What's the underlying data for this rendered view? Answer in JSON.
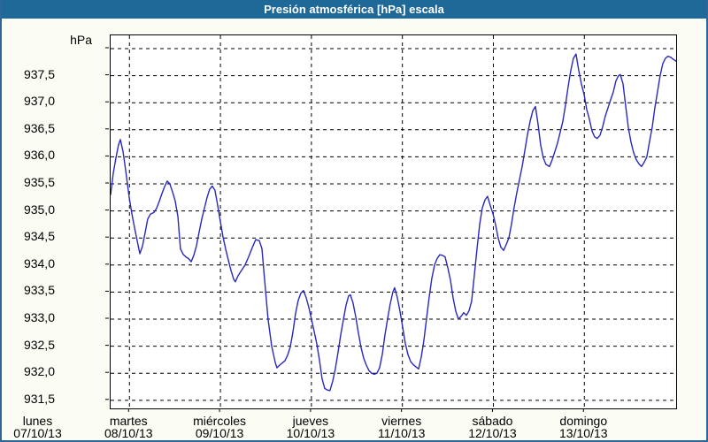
{
  "window": {
    "title": "Presión atmosférica [hPa] escala"
  },
  "colors": {
    "title_bar": "#1e6998",
    "frame": "#2d6797",
    "background": "#fbfdf5",
    "plot_background": "#ffffff",
    "line": "#2828be",
    "grid": "#000000",
    "text": "#000000"
  },
  "chart_data": {
    "type": "line",
    "title": "Presión atmosférica [hPa] escala",
    "ylabel": "hPa",
    "xlabel": "",
    "legend": "none",
    "grid": "dashed",
    "y_axis": {
      "min": 931.35,
      "max": 938.245,
      "gridline_step": 0.5,
      "decimal_separator": ",",
      "ticks": [
        {
          "value": 938.0,
          "label": ""
        },
        {
          "value": 937.5,
          "label": "937,5"
        },
        {
          "value": 937.0,
          "label": "937,0"
        },
        {
          "value": 936.5,
          "label": "936,5"
        },
        {
          "value": 936.0,
          "label": "936,0"
        },
        {
          "value": 935.5,
          "label": "935,5"
        },
        {
          "value": 935.0,
          "label": "935,0"
        },
        {
          "value": 934.5,
          "label": "934,5"
        },
        {
          "value": 934.0,
          "label": "934,0"
        },
        {
          "value": 933.5,
          "label": "933,5"
        },
        {
          "value": 933.0,
          "label": "933,0"
        },
        {
          "value": 932.5,
          "label": "932,5"
        },
        {
          "value": 932.0,
          "label": "932,0"
        },
        {
          "value": 931.5,
          "label": "931,5"
        }
      ]
    },
    "x_axis": {
      "unit": "days since Monday 07/10/13 00:00",
      "visible_min": 0.793,
      "visible_max": 7.009,
      "gridline_days": [
        1,
        2,
        3,
        4,
        5,
        6
      ],
      "ticks": [
        {
          "day": 0,
          "name": "lunes",
          "date": "07/10/13"
        },
        {
          "day": 1,
          "name": "martes",
          "date": "08/10/13"
        },
        {
          "day": 2,
          "name": "miércoles",
          "date": "09/10/13"
        },
        {
          "day": 3,
          "name": "jueves",
          "date": "10/10/13"
        },
        {
          "day": 4,
          "name": "viernes",
          "date": "11/10/13"
        },
        {
          "day": 5,
          "name": "sábado",
          "date": "12/10/13"
        },
        {
          "day": 6,
          "name": "domingo",
          "date": "13/10/13"
        }
      ]
    },
    "series": [
      {
        "name": "Presión atmosférica",
        "unit": "hPa",
        "points": [
          [
            0.793,
            935.3
          ],
          [
            0.822,
            935.7
          ],
          [
            0.851,
            935.98
          ],
          [
            0.88,
            936.22
          ],
          [
            0.9,
            936.32
          ],
          [
            0.929,
            936.1
          ],
          [
            0.958,
            935.75
          ],
          [
            0.997,
            935.25
          ],
          [
            1.026,
            934.95
          ],
          [
            1.055,
            934.7
          ],
          [
            1.085,
            934.45
          ],
          [
            1.114,
            934.21
          ],
          [
            1.143,
            934.35
          ],
          [
            1.172,
            934.6
          ],
          [
            1.201,
            934.85
          ],
          [
            1.23,
            934.94
          ],
          [
            1.269,
            934.97
          ],
          [
            1.299,
            935.05
          ],
          [
            1.328,
            935.18
          ],
          [
            1.357,
            935.32
          ],
          [
            1.386,
            935.45
          ],
          [
            1.415,
            935.55
          ],
          [
            1.444,
            935.5
          ],
          [
            1.474,
            935.35
          ],
          [
            1.503,
            935.18
          ],
          [
            1.532,
            934.9
          ],
          [
            1.561,
            934.3
          ],
          [
            1.59,
            934.2
          ],
          [
            1.62,
            934.15
          ],
          [
            1.649,
            934.12
          ],
          [
            1.678,
            934.06
          ],
          [
            1.707,
            934.18
          ],
          [
            1.736,
            934.35
          ],
          [
            1.765,
            934.6
          ],
          [
            1.795,
            934.85
          ],
          [
            1.824,
            935.05
          ],
          [
            1.853,
            935.25
          ],
          [
            1.882,
            935.4
          ],
          [
            1.911,
            935.46
          ],
          [
            1.94,
            935.38
          ],
          [
            1.97,
            935.1
          ],
          [
            1.999,
            934.8
          ],
          [
            2.028,
            934.52
          ],
          [
            2.057,
            934.3
          ],
          [
            2.086,
            934.1
          ],
          [
            2.116,
            933.9
          ],
          [
            2.145,
            933.74
          ],
          [
            2.164,
            933.69
          ],
          [
            2.193,
            933.8
          ],
          [
            2.232,
            933.9
          ],
          [
            2.271,
            934.0
          ],
          [
            2.31,
            934.15
          ],
          [
            2.349,
            934.32
          ],
          [
            2.388,
            934.47
          ],
          [
            2.427,
            934.45
          ],
          [
            2.456,
            934.3
          ],
          [
            2.485,
            933.74
          ],
          [
            2.524,
            933.0
          ],
          [
            2.563,
            932.5
          ],
          [
            2.602,
            932.2
          ],
          [
            2.621,
            932.1
          ],
          [
            2.651,
            932.15
          ],
          [
            2.68,
            932.19
          ],
          [
            2.709,
            932.23
          ],
          [
            2.738,
            932.33
          ],
          [
            2.767,
            932.48
          ],
          [
            2.796,
            932.75
          ],
          [
            2.825,
            933.1
          ],
          [
            2.855,
            933.35
          ],
          [
            2.884,
            933.48
          ],
          [
            2.913,
            933.53
          ],
          [
            2.942,
            933.4
          ],
          [
            2.971,
            933.22
          ],
          [
            3.0,
            933.0
          ],
          [
            3.029,
            932.78
          ],
          [
            3.059,
            932.55
          ],
          [
            3.088,
            932.25
          ],
          [
            3.117,
            931.9
          ],
          [
            3.146,
            931.72
          ],
          [
            3.175,
            931.69
          ],
          [
            3.204,
            931.68
          ],
          [
            3.234,
            931.85
          ],
          [
            3.263,
            932.08
          ],
          [
            3.292,
            932.38
          ],
          [
            3.321,
            932.7
          ],
          [
            3.35,
            932.98
          ],
          [
            3.38,
            933.25
          ],
          [
            3.409,
            933.43
          ],
          [
            3.428,
            933.45
          ],
          [
            3.457,
            933.3
          ],
          [
            3.487,
            933.05
          ],
          [
            3.516,
            932.75
          ],
          [
            3.545,
            932.48
          ],
          [
            3.574,
            932.28
          ],
          [
            3.603,
            932.15
          ],
          [
            3.633,
            932.05
          ],
          [
            3.662,
            932.0
          ],
          [
            3.691,
            931.98
          ],
          [
            3.72,
            932.0
          ],
          [
            3.749,
            932.1
          ],
          [
            3.779,
            932.35
          ],
          [
            3.808,
            932.7
          ],
          [
            3.837,
            933.0
          ],
          [
            3.866,
            933.28
          ],
          [
            3.895,
            933.5
          ],
          [
            3.915,
            933.58
          ],
          [
            3.944,
            933.4
          ],
          [
            3.973,
            933.15
          ],
          [
            4.003,
            932.85
          ],
          [
            4.032,
            932.55
          ],
          [
            4.061,
            932.35
          ],
          [
            4.09,
            932.22
          ],
          [
            4.119,
            932.16
          ],
          [
            4.148,
            932.12
          ],
          [
            4.178,
            932.08
          ],
          [
            4.207,
            932.3
          ],
          [
            4.236,
            932.6
          ],
          [
            4.265,
            933.0
          ],
          [
            4.294,
            933.4
          ],
          [
            4.323,
            933.75
          ],
          [
            4.353,
            934.0
          ],
          [
            4.382,
            934.12
          ],
          [
            4.411,
            934.19
          ],
          [
            4.44,
            934.18
          ],
          [
            4.469,
            934.15
          ],
          [
            4.499,
            933.95
          ],
          [
            4.528,
            933.72
          ],
          [
            4.557,
            933.4
          ],
          [
            4.586,
            933.15
          ],
          [
            4.615,
            933.0
          ],
          [
            4.644,
            933.05
          ],
          [
            4.674,
            933.12
          ],
          [
            4.703,
            933.07
          ],
          [
            4.732,
            933.15
          ],
          [
            4.761,
            933.33
          ],
          [
            4.79,
            933.8
          ],
          [
            4.82,
            934.3
          ],
          [
            4.849,
            934.75
          ],
          [
            4.878,
            935.05
          ],
          [
            4.907,
            935.2
          ],
          [
            4.936,
            935.27
          ],
          [
            4.966,
            935.1
          ],
          [
            4.995,
            934.95
          ],
          [
            5.024,
            934.75
          ],
          [
            5.053,
            934.5
          ],
          [
            5.082,
            934.33
          ],
          [
            5.112,
            934.27
          ],
          [
            5.141,
            934.38
          ],
          [
            5.17,
            934.5
          ],
          [
            5.199,
            934.75
          ],
          [
            5.228,
            935.06
          ],
          [
            5.257,
            935.33
          ],
          [
            5.287,
            935.58
          ],
          [
            5.316,
            935.82
          ],
          [
            5.345,
            936.1
          ],
          [
            5.374,
            936.4
          ],
          [
            5.403,
            936.65
          ],
          [
            5.433,
            936.85
          ],
          [
            5.462,
            936.93
          ],
          [
            5.491,
            936.6
          ],
          [
            5.52,
            936.22
          ],
          [
            5.549,
            935.98
          ],
          [
            5.578,
            935.86
          ],
          [
            5.617,
            935.82
          ],
          [
            5.647,
            935.95
          ],
          [
            5.676,
            936.1
          ],
          [
            5.705,
            936.25
          ],
          [
            5.734,
            936.45
          ],
          [
            5.763,
            936.65
          ],
          [
            5.792,
            936.95
          ],
          [
            5.822,
            937.3
          ],
          [
            5.851,
            937.6
          ],
          [
            5.88,
            937.82
          ],
          [
            5.909,
            937.9
          ],
          [
            5.938,
            937.6
          ],
          [
            5.967,
            937.35
          ],
          [
            5.997,
            937.15
          ],
          [
            6.026,
            936.88
          ],
          [
            6.055,
            936.7
          ],
          [
            6.084,
            936.48
          ],
          [
            6.113,
            936.37
          ],
          [
            6.142,
            936.34
          ],
          [
            6.172,
            936.4
          ],
          [
            6.201,
            936.55
          ],
          [
            6.23,
            936.75
          ],
          [
            6.259,
            936.9
          ],
          [
            6.288,
            937.05
          ],
          [
            6.318,
            937.2
          ],
          [
            6.347,
            937.4
          ],
          [
            6.376,
            937.5
          ],
          [
            6.395,
            937.52
          ],
          [
            6.425,
            937.35
          ],
          [
            6.454,
            936.95
          ],
          [
            6.483,
            936.55
          ],
          [
            6.512,
            936.28
          ],
          [
            6.541,
            936.08
          ],
          [
            6.57,
            935.95
          ],
          [
            6.6,
            935.87
          ],
          [
            6.629,
            935.82
          ],
          [
            6.658,
            935.9
          ],
          [
            6.687,
            936.0
          ],
          [
            6.716,
            936.28
          ],
          [
            6.746,
            936.55
          ],
          [
            6.775,
            936.9
          ],
          [
            6.804,
            937.2
          ],
          [
            6.833,
            937.5
          ],
          [
            6.862,
            937.72
          ],
          [
            6.891,
            937.82
          ],
          [
            6.92,
            937.86
          ],
          [
            6.95,
            937.84
          ],
          [
            6.979,
            937.8
          ],
          [
            7.008,
            937.77
          ]
        ]
      }
    ]
  }
}
